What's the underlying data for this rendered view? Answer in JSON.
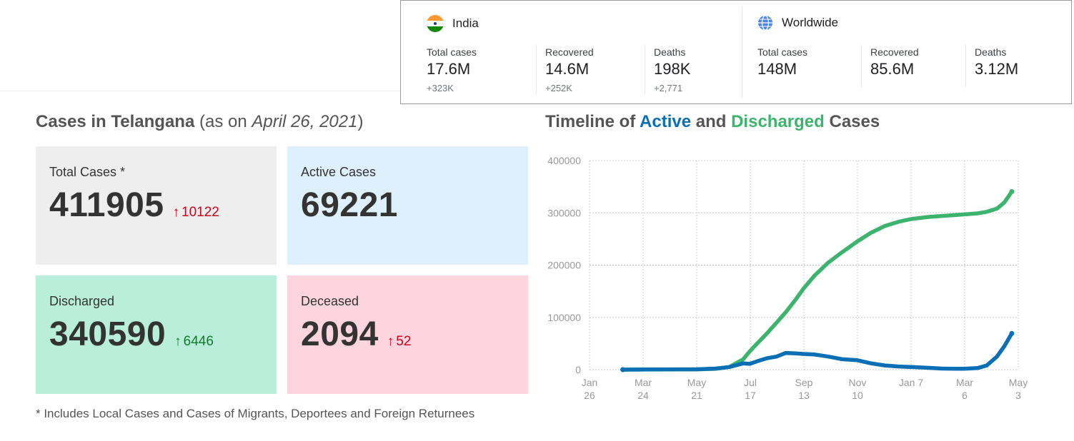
{
  "global_stats": {
    "india": {
      "name": "India",
      "flag_icon": "india-flag-icon",
      "stats": [
        {
          "label": "Total cases",
          "value": "17.6M",
          "change": "+323K"
        },
        {
          "label": "Recovered",
          "value": "14.6M",
          "change": "+252K"
        },
        {
          "label": "Deaths",
          "value": "198K",
          "change": "+2,771"
        }
      ]
    },
    "worldwide": {
      "name": "Worldwide",
      "icon": "globe-icon",
      "stats": [
        {
          "label": "Total cases",
          "value": "148M"
        },
        {
          "label": "Recovered",
          "value": "85.6M"
        },
        {
          "label": "Deaths",
          "value": "3.12M"
        }
      ]
    }
  },
  "telangana": {
    "title_bold": "Cases in Telangana",
    "title_pre": "(as on ",
    "title_date": "April 26, 2021",
    "title_post": ")",
    "cards": {
      "total": {
        "label": "Total Cases *",
        "value": "411905",
        "delta": "10122",
        "color": "#eeeeee"
      },
      "active": {
        "label": "Active Cases",
        "value": "69221",
        "color": "#def0fb"
      },
      "discharged": {
        "label": "Discharged",
        "value": "340590",
        "delta": "6446",
        "color": "#b9eedb"
      },
      "deceased": {
        "label": "Deceased",
        "value": "2094",
        "delta": "52",
        "color": "#fdd5de"
      }
    },
    "footnote": "* Includes Local Cases and Cases of Migrants, Deportees and Foreign Returnees"
  },
  "chart_title": {
    "pre": "Timeline of ",
    "active": "Active",
    "mid": " and ",
    "discharged": "Discharged",
    "post": " Cases"
  },
  "chart_data": {
    "type": "line",
    "title": "Timeline of Active and Discharged Cases",
    "ylim": [
      0,
      400000
    ],
    "y_ticks": [
      "400000",
      "300000",
      "200000",
      "100000",
      "0"
    ],
    "x_ticks": [
      {
        "line1": "Jan",
        "line2": "26"
      },
      {
        "line1": "Mar",
        "line2": "24"
      },
      {
        "line1": "May",
        "line2": "21"
      },
      {
        "line1": "Jul",
        "line2": "17"
      },
      {
        "line1": "Sep",
        "line2": "13"
      },
      {
        "line1": "Nov",
        "line2": "10"
      },
      {
        "line1": "Jan 7",
        "line2": ""
      },
      {
        "line1": "Mar",
        "line2": "6"
      },
      {
        "line1": "May",
        "line2": "3"
      }
    ],
    "grid": true,
    "colors": {
      "active": "#0a6fb5",
      "discharged": "#3cb46e"
    },
    "series": [
      {
        "name": "Active",
        "x": [
          "2020-03-02",
          "2020-03-24",
          "2020-04-20",
          "2020-05-21",
          "2020-06-10",
          "2020-06-25",
          "2020-07-10",
          "2020-07-17",
          "2020-07-25",
          "2020-08-05",
          "2020-08-15",
          "2020-08-25",
          "2020-09-05",
          "2020-09-13",
          "2020-09-25",
          "2020-10-10",
          "2020-10-25",
          "2020-11-10",
          "2020-11-25",
          "2020-12-10",
          "2020-12-25",
          "2021-01-07",
          "2021-01-25",
          "2021-02-10",
          "2021-02-25",
          "2021-03-06",
          "2021-03-20",
          "2021-03-30",
          "2021-04-10",
          "2021-04-18",
          "2021-04-26"
        ],
        "values": [
          0,
          300,
          500,
          700,
          2000,
          5000,
          12000,
          11000,
          16000,
          22000,
          25000,
          32000,
          31000,
          30000,
          29000,
          25000,
          20000,
          18000,
          12000,
          8000,
          6000,
          5000,
          3500,
          2000,
          1800,
          1800,
          3000,
          8000,
          25000,
          45000,
          69221
        ]
      },
      {
        "name": "Discharged",
        "x": [
          "2020-03-02",
          "2020-03-24",
          "2020-04-20",
          "2020-05-21",
          "2020-06-10",
          "2020-06-25",
          "2020-07-10",
          "2020-07-17",
          "2020-07-25",
          "2020-08-05",
          "2020-08-15",
          "2020-08-25",
          "2020-09-05",
          "2020-09-13",
          "2020-09-25",
          "2020-10-10",
          "2020-10-25",
          "2020-11-10",
          "2020-11-25",
          "2020-12-10",
          "2020-12-25",
          "2021-01-07",
          "2021-01-25",
          "2021-02-10",
          "2021-02-25",
          "2021-03-06",
          "2021-03-20",
          "2021-03-30",
          "2021-04-10",
          "2021-04-18",
          "2021-04-26"
        ],
        "values": [
          0,
          150,
          300,
          500,
          1500,
          5000,
          20000,
          35000,
          50000,
          70000,
          90000,
          110000,
          135000,
          155000,
          180000,
          205000,
          225000,
          245000,
          262000,
          275000,
          283000,
          288000,
          292000,
          294000,
          296000,
          297000,
          299000,
          302000,
          308000,
          320000,
          340590
        ]
      }
    ]
  }
}
